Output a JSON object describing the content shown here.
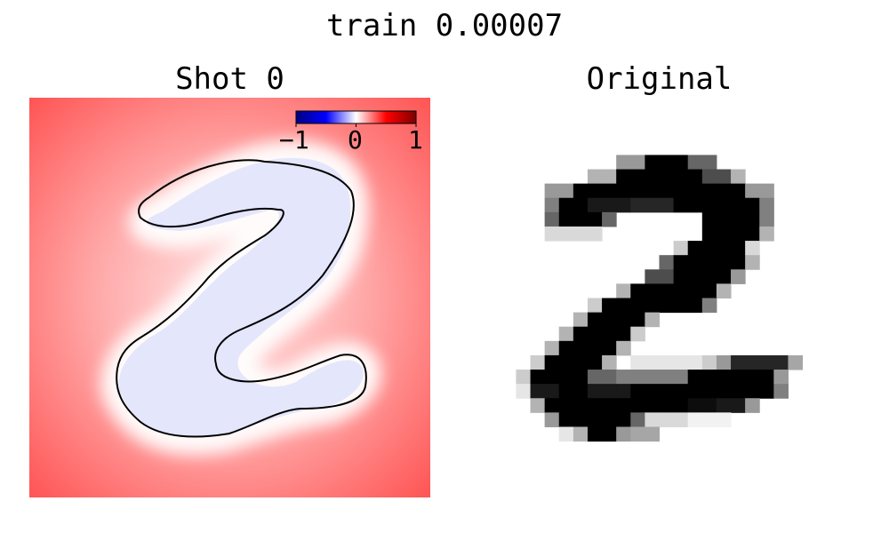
{
  "figure": {
    "title": "train 0.00007",
    "panels": [
      {
        "title": "Shot 0"
      },
      {
        "title": "Original"
      }
    ]
  },
  "colors": {
    "positive_field": "#ff4444",
    "near_zero": "#ffffff",
    "negative_field": "#e4e6fb",
    "contour": "#000000",
    "colorbar_stops": [
      "#00007f",
      "#0000ff",
      "#ffffff",
      "#ff0000",
      "#7f0000"
    ]
  },
  "chart_data": [
    {
      "type": "heatmap",
      "name": "Shot 0",
      "cmap": "seismic",
      "vmin": -1,
      "vmax": 1,
      "colorbar": {
        "ticks": [
          -1,
          0,
          1
        ],
        "tick_labels": [
          "−1",
          "0",
          "1"
        ],
        "placement": "top-right"
      },
      "contour_level": 0,
      "description_values": {
        "outside_digit": 0.7,
        "inside_digit": -0.1
      },
      "axes": "off"
    },
    {
      "type": "heatmap",
      "name": "Original",
      "cmap": "gray_r",
      "shape": [
        28,
        28
      ],
      "digit": "2",
      "axes": "off"
    }
  ]
}
